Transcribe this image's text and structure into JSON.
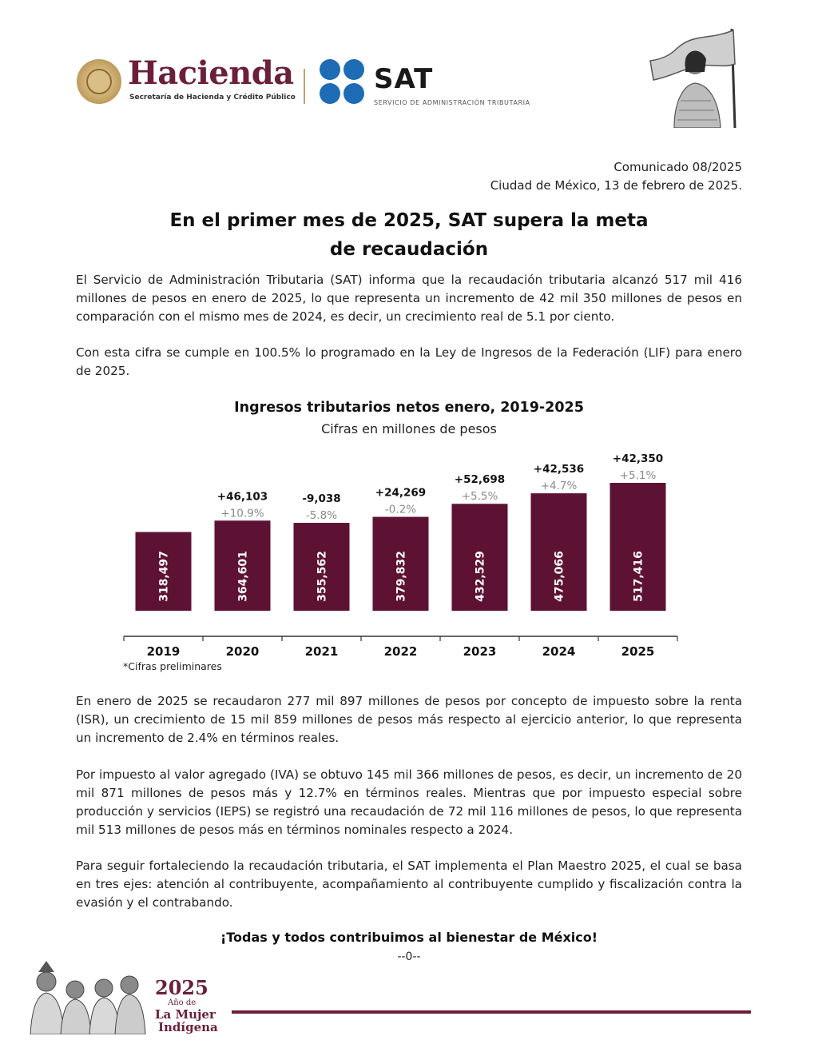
{
  "header": {
    "hacienda_name": "Hacienda",
    "hacienda_subtitle": "Secretaría de Hacienda y Crédito Público",
    "sat_name": "SAT",
    "sat_subtitle": "SERVICIO DE ADMINISTRACIÓN TRIBUTARIA",
    "colors": {
      "guinda": "#6b1f3a",
      "sat_blue": "#1e6cb5",
      "gold": "#c2a36a"
    }
  },
  "meta": {
    "communique": "Comunicado 08/2025",
    "place_date": "Ciudad de México, 13 de febrero de 2025."
  },
  "title": {
    "line1": "En el primer mes de 2025, SAT supera la meta",
    "line2": "de recaudación"
  },
  "body": {
    "p1": "El Servicio de Administración Tributaria (SAT) informa que la recaudación tributaria alcanzó 517 mil 416 millones de pesos en enero de 2025, lo que representa un incremento de 42 mil 350 millones de pesos en comparación con el mismo mes de 2024, es decir, un crecimiento real de 5.1 por ciento.",
    "p2": "Con esta cifra se cumple en 100.5% lo programado en la Ley de Ingresos de la Federación (LIF) para enero de 2025.",
    "p3": "En enero de 2025 se recaudaron 277 mil 897 millones de pesos por concepto de impuesto sobre la renta (ISR), un crecimiento de 15 mil 859 millones de pesos más respecto al ejercicio anterior, lo que representa un incremento de 2.4% en términos reales.",
    "p4": "Por impuesto al valor agregado (IVA) se obtuvo 145 mil 366 millones de pesos, es decir, un incremento de 20 mil 871 millones de pesos más y 12.7% en términos reales. Mientras que por impuesto especial sobre producción y servicios (IEPS) se registró una recaudación de 72 mil 116 millones de pesos, lo que representa mil 513 millones de pesos más en términos nominales respecto a 2024.",
    "p5": "Para seguir fortaleciendo la recaudación tributaria, el SAT implementa el Plan Maestro 2025, el cual se basa en tres ejes: atención al contribuyente, acompañamiento al contribuyente cumplido y fiscalización contra la evasión y el contrabando."
  },
  "chart_data": {
    "type": "bar",
    "title": "Ingresos tributarios netos enero, 2019-2025",
    "subtitle": "Cifras en millones de pesos",
    "xlabel": "",
    "ylabel": "",
    "categories": [
      "2019",
      "2020",
      "2021",
      "2022",
      "2023",
      "2024",
      "2025"
    ],
    "values": [
      318497,
      364601,
      355562,
      379832,
      432529,
      475066,
      517416
    ],
    "value_labels": [
      "318,497",
      "364,601",
      "355,562",
      "379,832",
      "432,529",
      "475,066",
      "517,416"
    ],
    "change_labels": [
      "",
      "+46,103",
      "-9,038",
      "+24,269",
      "+52,698",
      "+42,536",
      "+42,350"
    ],
    "pct_labels": [
      "",
      "+10.9%",
      "-5.8%",
      "-0.2%",
      "+5.5%",
      "+4.7%",
      "+5.1%"
    ],
    "note": "*Cifras preliminares",
    "bar_color": "#5e1233",
    "grid": false,
    "legend": "none"
  },
  "closing": {
    "slogan": "¡Todas y todos contribuimos al bienestar de México!",
    "end_mark": "--0--"
  },
  "footer": {
    "year": "2025",
    "line1": "Año de",
    "line2": "La Mujer",
    "line3": "Indígena"
  }
}
